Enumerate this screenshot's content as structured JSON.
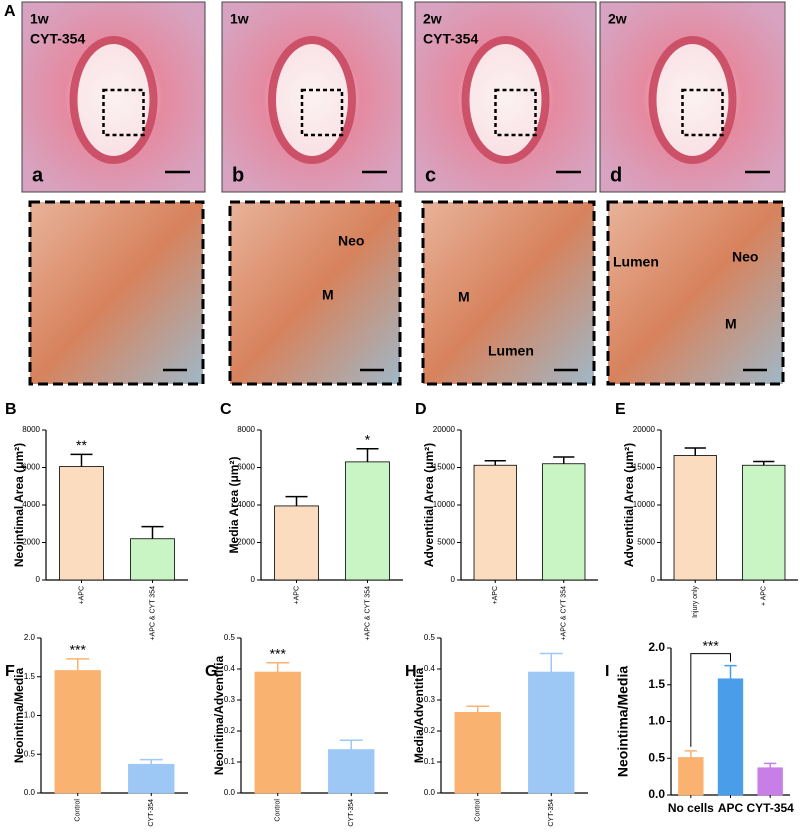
{
  "figure_label": "A",
  "histology_top": [
    {
      "time": "1w",
      "treatment": "CYT-354",
      "letter": "a"
    },
    {
      "time": "1w",
      "letter": "b"
    },
    {
      "time": "2w",
      "treatment": "CYT-354",
      "letter": "c"
    },
    {
      "time": "2w",
      "letter": "d"
    }
  ],
  "histology_zoom": [
    {
      "labels": []
    },
    {
      "labels": [
        "Neo",
        "M"
      ]
    },
    {
      "labels": [
        "M",
        "Lumen"
      ]
    },
    {
      "labels": [
        "Lumen",
        "Neo",
        "M"
      ]
    }
  ],
  "chart_data": [
    {
      "type": "bar",
      "panel_label": "B",
      "ylabel": "Neointimal Area (μm²)",
      "categories": [
        "+APC",
        "+APC & CYT 354"
      ],
      "values": [
        6050,
        2200
      ],
      "errors": [
        650,
        650
      ],
      "colors": [
        "#fcdcbf",
        "#c9f5c4"
      ],
      "xtick_rotation": 90,
      "ylim": [
        0,
        8000
      ],
      "yticks": [
        0,
        2000,
        4000,
        6000,
        8000
      ],
      "annotations": [
        {
          "text": "**",
          "categories": [
            "+APC"
          ]
        }
      ]
    },
    {
      "type": "bar",
      "panel_label": "C",
      "ylabel": "Media Area (μm²)",
      "categories": [
        "+APC",
        "+APC & CYT 354"
      ],
      "values": [
        3950,
        6300
      ],
      "errors": [
        500,
        700
      ],
      "colors": [
        "#fcdcbf",
        "#c9f5c4"
      ],
      "xtick_rotation": 90,
      "ylim": [
        0,
        8000
      ],
      "yticks": [
        0,
        2000,
        4000,
        6000,
        8000
      ],
      "annotations": [
        {
          "text": "*",
          "categories": [
            "+APC & CYT 354"
          ]
        }
      ]
    },
    {
      "type": "bar",
      "panel_label": "D",
      "ylabel": "Adventitial Area (μm²)",
      "categories": [
        "+APC",
        "+APC & CYT 354"
      ],
      "values": [
        15300,
        15500
      ],
      "errors": [
        600,
        900
      ],
      "colors": [
        "#fcdcbf",
        "#c9f5c4"
      ],
      "xtick_rotation": 90,
      "ylim": [
        0,
        20000
      ],
      "yticks": [
        0,
        5000,
        10000,
        15000,
        20000
      ]
    },
    {
      "type": "bar",
      "panel_label": "E",
      "ylabel": "Adventitial Area (μm²)",
      "categories": [
        "Injury only",
        "+ APC"
      ],
      "values": [
        16600,
        15300
      ],
      "errors": [
        1000,
        500
      ],
      "colors": [
        "#fcdcbf",
        "#c9f5c4"
      ],
      "xtick_rotation": 90,
      "ylim": [
        0,
        20000
      ],
      "yticks": [
        0,
        5000,
        10000,
        15000,
        20000
      ]
    },
    {
      "type": "bar",
      "panel_label": "F",
      "ylabel": "Neointima/Media",
      "categories": [
        "Control",
        "CYT-354"
      ],
      "values": [
        1.58,
        0.37
      ],
      "errors": [
        0.15,
        0.06
      ],
      "colors": [
        "#f9b26f",
        "#9dc7f5"
      ],
      "xtick_rotation": 90,
      "ylim": [
        0,
        2.0
      ],
      "yticks": [
        {
          "value": 0,
          "label": "0.0"
        },
        0.5,
        {
          "value": 1,
          "label": "1.0"
        },
        1.5,
        {
          "value": 2,
          "label": "2.0"
        }
      ],
      "annotations": [
        {
          "text": "***",
          "categories": [
            "Control"
          ]
        }
      ]
    },
    {
      "type": "bar",
      "panel_label": "G",
      "ylabel": "Neointima/Adventitia",
      "categories": [
        "Control",
        "CYT-354"
      ],
      "values": [
        0.39,
        0.14
      ],
      "errors": [
        0.03,
        0.03
      ],
      "colors": [
        "#f9b26f",
        "#9dc7f5"
      ],
      "xtick_rotation": 90,
      "ylim": [
        0,
        0.5
      ],
      "yticks": [
        {
          "value": 0,
          "label": "0.0"
        },
        0.1,
        0.2,
        0.3,
        0.4,
        0.5
      ],
      "annotations": [
        {
          "text": "***",
          "categories": [
            "Control"
          ]
        }
      ]
    },
    {
      "type": "bar",
      "panel_label": "H",
      "ylabel": "Media/Adventitia",
      "categories": [
        "Control",
        "CYT-354"
      ],
      "values": [
        0.26,
        0.39
      ],
      "errors": [
        0.02,
        0.06
      ],
      "colors": [
        "#f9b26f",
        "#9dc7f5"
      ],
      "xtick_rotation": 90,
      "ylim": [
        0,
        0.5
      ],
      "yticks": [
        {
          "value": 0,
          "label": "0.0"
        },
        0.1,
        0.2,
        0.3,
        0.4,
        0.5
      ]
    },
    {
      "type": "bar",
      "panel_label": "I",
      "ylabel": "Neointima/Media",
      "categories": [
        "No cells",
        "APC",
        "CYT-354"
      ],
      "values": [
        0.51,
        1.58,
        0.37
      ],
      "errors": [
        0.09,
        0.18,
        0.06
      ],
      "colors": [
        "#f9b26f",
        "#4a9de8",
        "#c77ee6"
      ],
      "xtick_rotation": 0,
      "ylim": [
        0,
        2.0
      ],
      "yticks": [
        {
          "value": 0,
          "label": "0.0"
        },
        0.5,
        {
          "value": 1,
          "label": "1.0"
        },
        1.5,
        {
          "value": 2,
          "label": "2.0"
        }
      ],
      "annotations": [
        {
          "text": "***",
          "categories": [
            "No cells",
            "APC"
          ]
        }
      ]
    }
  ]
}
